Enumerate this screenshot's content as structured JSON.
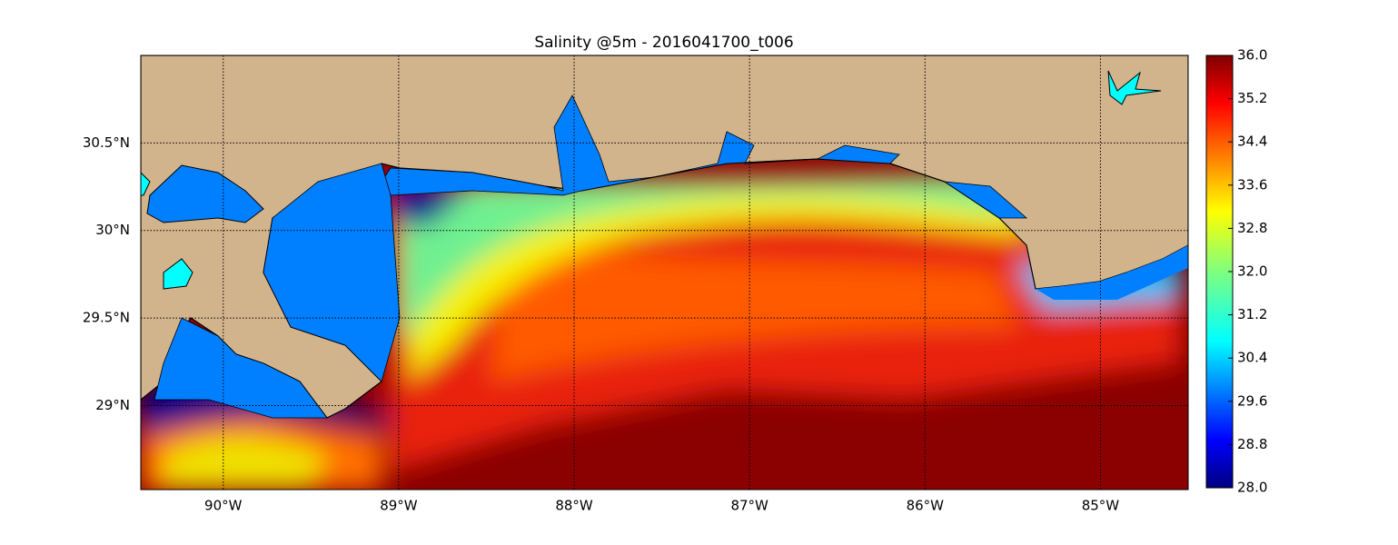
{
  "chart_data": {
    "type": "map",
    "title": "Salinity @5m - 2016041700_t006",
    "xlim": [
      -90.47,
      -84.5
    ],
    "xticks": [
      {
        "value": -90,
        "label": "90°W"
      },
      {
        "value": -89,
        "label": "89°W"
      },
      {
        "value": -88,
        "label": "88°W"
      },
      {
        "value": -87,
        "label": "87°W"
      },
      {
        "value": -86,
        "label": "86°W"
      },
      {
        "value": -85,
        "label": "85°W"
      }
    ],
    "ylim": [
      28.52,
      31.0
    ],
    "yticks": [
      {
        "value": 29,
        "label": "29°N"
      },
      {
        "value": 29.5,
        "label": "29.5°N"
      },
      {
        "value": 30,
        "label": "30°N"
      },
      {
        "value": 30.5,
        "label": "30.5°N"
      }
    ],
    "grid": true,
    "colorbar": {
      "lim": [
        28,
        36
      ],
      "ticks": [
        {
          "value": 28,
          "label": "28.0"
        },
        28.8,
        29.6,
        30.4,
        31.2,
        {
          "value": 32,
          "label": "32.0"
        },
        32.8,
        33.6,
        34.4,
        35.2,
        {
          "value": 36,
          "label": "36.0"
        }
      ]
    }
  }
}
